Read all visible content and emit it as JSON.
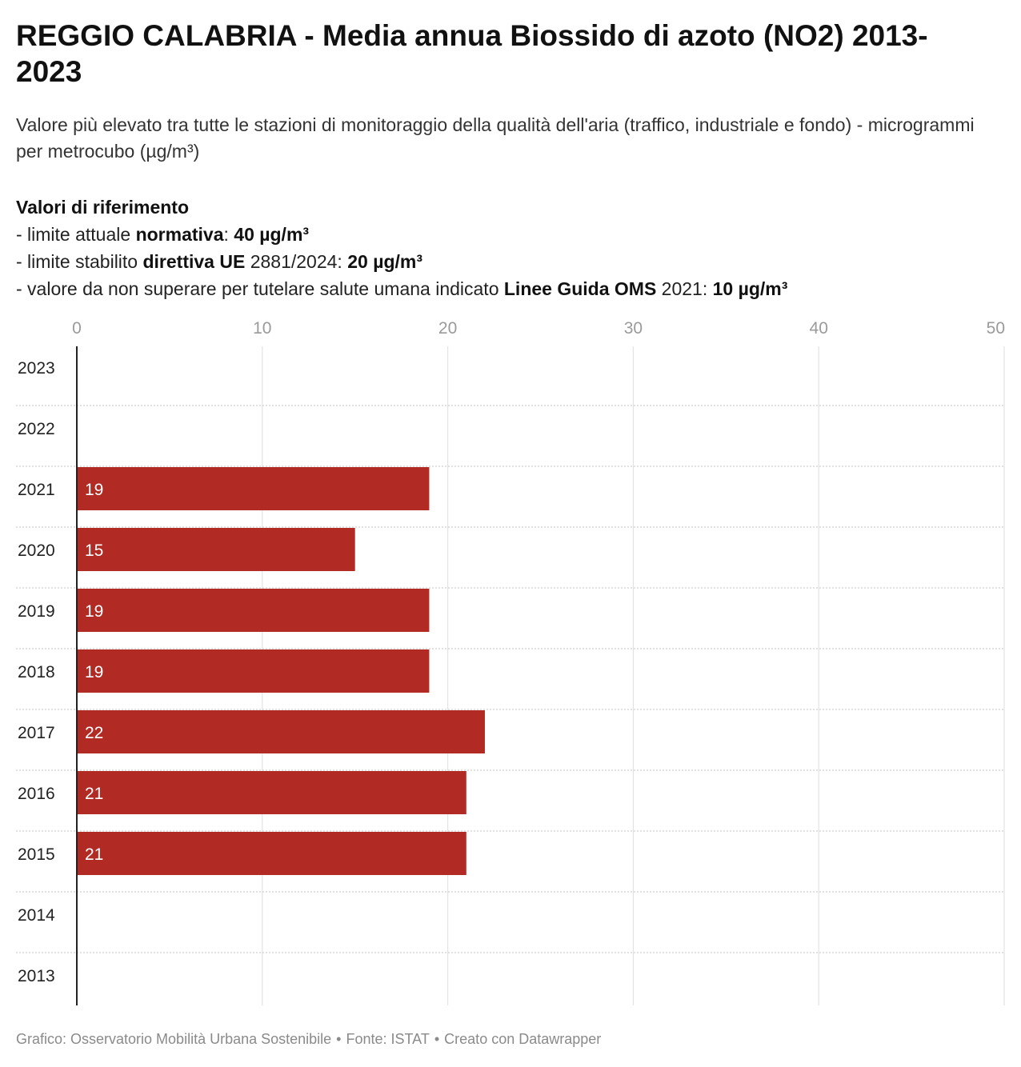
{
  "header": {
    "title": "REGGIO CALABRIA - Media annua Biossido di azoto (NO2) 2013-2023",
    "subtitle": "Valore più elevato tra tutte le stazioni di monitoraggio della qualità dell'aria (traffico, industriale e fondo) - microgrammi per metrocubo (µg/m³)"
  },
  "references": {
    "heading": "Valori di riferimento",
    "items": [
      {
        "before": "- limite attuale ",
        "bold1": "normativa",
        "mid": ": ",
        "bold2": "40 µg/m³"
      },
      {
        "before": "- limite stabilito ",
        "bold1": "direttiva UE",
        "mid": " 2881/2024: ",
        "bold2": "20 µg/m³"
      },
      {
        "before": "- valore da non superare per tutelare salute umana indicato ",
        "bold1": "Linee Guida OMS",
        "mid": " 2021: ",
        "bold2": "10 µg/m³"
      }
    ]
  },
  "chart_data": {
    "type": "bar",
    "orientation": "horizontal",
    "categories": [
      "2023",
      "2022",
      "2021",
      "2020",
      "2019",
      "2018",
      "2017",
      "2016",
      "2015",
      "2014",
      "2013"
    ],
    "values": [
      null,
      null,
      19,
      15,
      19,
      19,
      22,
      21,
      21,
      null,
      null
    ],
    "data_labels": [
      "",
      "",
      "19",
      "15",
      "19",
      "19",
      "22",
      "21",
      "21",
      "",
      ""
    ],
    "xlim": [
      0,
      50
    ],
    "x_ticks": [
      0,
      10,
      20,
      30,
      40,
      50
    ],
    "x_tick_labels": [
      "0",
      "10",
      "20",
      "30",
      "40",
      "50"
    ],
    "xlabel": "",
    "ylabel": "",
    "axis_position": "top",
    "grid": true,
    "bar_color": "#b12a24",
    "label_color": "#ffffff"
  },
  "footer": {
    "credit": "Grafico: Osservatorio Mobilità Urbana Sostenibile",
    "separator": "•",
    "source": "Fonte: ISTAT",
    "tool": "Creato con Datawrapper"
  }
}
